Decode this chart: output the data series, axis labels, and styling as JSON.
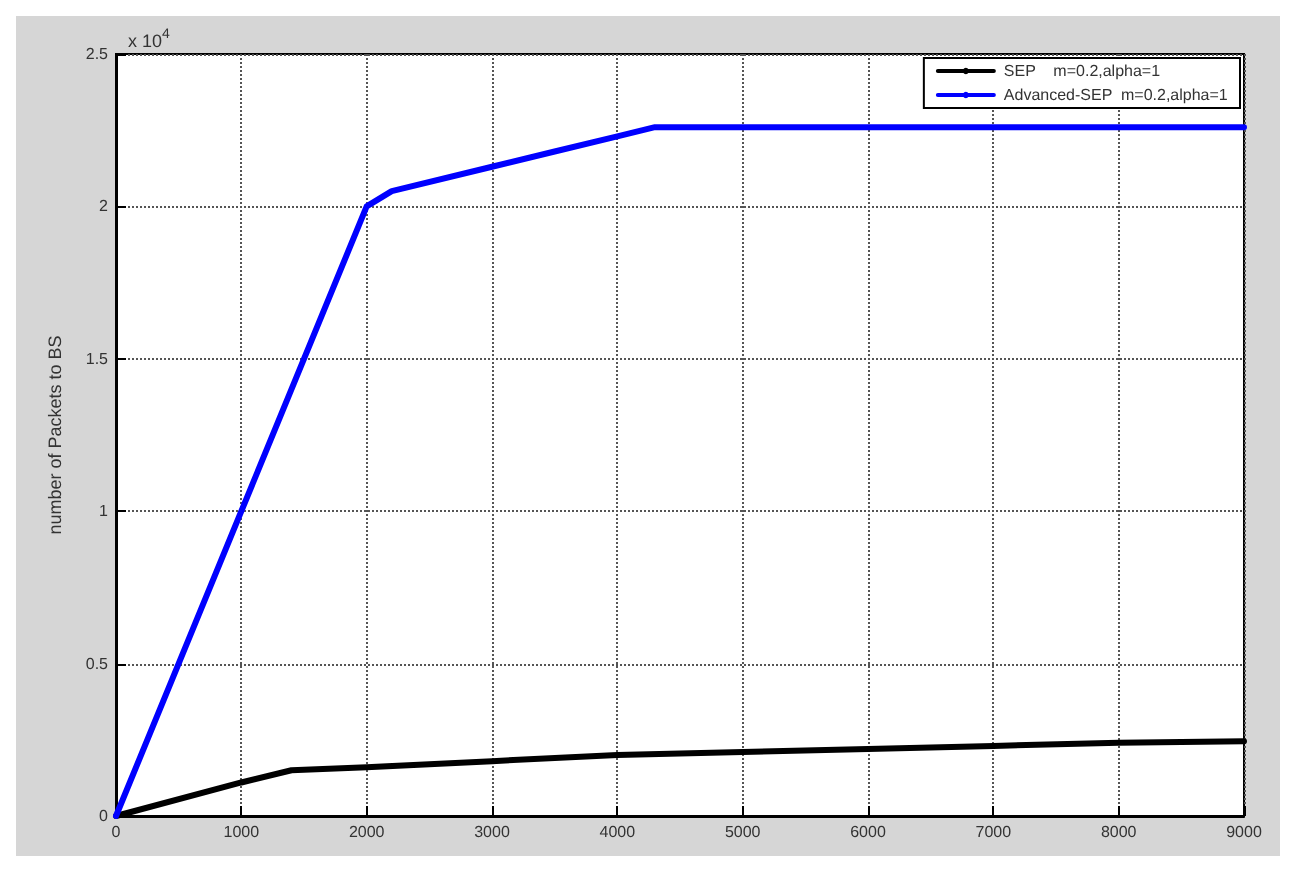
{
  "chart_data": {
    "type": "line",
    "ylabel": "number of Packets to BS",
    "annotations": [
      "x 10$^{4}$"
    ],
    "xlim": [
      0,
      9000
    ],
    "xticks": [
      0,
      1000,
      2000,
      3000,
      4000,
      5000,
      6000,
      7000,
      8000,
      9000
    ],
    "ylim": [
      0,
      2.5
    ],
    "yticks": [
      0,
      0.5,
      1,
      1.5,
      2,
      2.5
    ],
    "grid": true,
    "legend": "top right",
    "marker": "none",
    "line_style": "solid",
    "series": [
      {
        "name": "SEP    m=0.2,alpha=1",
        "color": "#000000",
        "x": [
          0,
          1000,
          1400,
          2000,
          3000,
          4000,
          5000,
          6000,
          7000,
          8000,
          9000
        ],
        "values": [
          0,
          0.11,
          0.15,
          0.16,
          0.18,
          0.2,
          0.21,
          0.22,
          0.23,
          0.24,
          0.245
        ]
      },
      {
        "name": "Advanced-SEP  m=0.2,alpha=1",
        "color": "#0000ff",
        "x": [
          0,
          1000,
          2000,
          2200,
          3000,
          3500,
          4000,
          4300,
          5000,
          6000,
          7000,
          8000,
          9000
        ],
        "values": [
          0,
          1,
          2,
          2.05,
          2.13,
          2.18,
          2.23,
          2.26,
          2.26,
          2.26,
          2.26,
          2.26,
          2.26
        ]
      }
    ]
  }
}
